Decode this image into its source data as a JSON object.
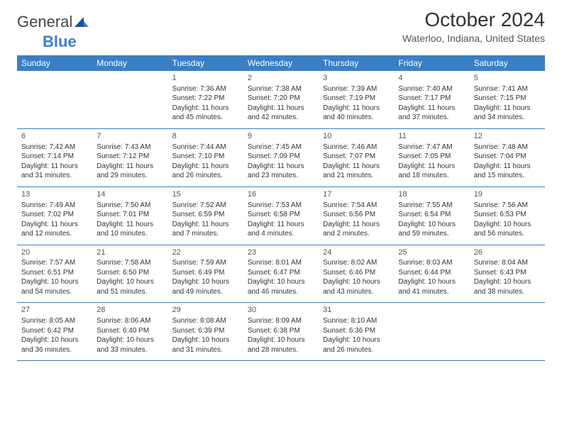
{
  "logo": {
    "text1": "General",
    "text2": "Blue"
  },
  "title": "October 2024",
  "location": "Waterloo, Indiana, United States",
  "colors": {
    "header_bg": "#3a7fc4",
    "header_text": "#ffffff",
    "divider": "#3a7fc4",
    "body_text": "#333333",
    "background": "#ffffff"
  },
  "weekdays": [
    "Sunday",
    "Monday",
    "Tuesday",
    "Wednesday",
    "Thursday",
    "Friday",
    "Saturday"
  ],
  "weeks": [
    [
      {
        "n": "",
        "text": ""
      },
      {
        "n": "",
        "text": ""
      },
      {
        "n": "1",
        "text": "Sunrise: 7:36 AM\nSunset: 7:22 PM\nDaylight: 11 hours and 45 minutes."
      },
      {
        "n": "2",
        "text": "Sunrise: 7:38 AM\nSunset: 7:20 PM\nDaylight: 11 hours and 42 minutes."
      },
      {
        "n": "3",
        "text": "Sunrise: 7:39 AM\nSunset: 7:19 PM\nDaylight: 11 hours and 40 minutes."
      },
      {
        "n": "4",
        "text": "Sunrise: 7:40 AM\nSunset: 7:17 PM\nDaylight: 11 hours and 37 minutes."
      },
      {
        "n": "5",
        "text": "Sunrise: 7:41 AM\nSunset: 7:15 PM\nDaylight: 11 hours and 34 minutes."
      }
    ],
    [
      {
        "n": "6",
        "text": "Sunrise: 7:42 AM\nSunset: 7:14 PM\nDaylight: 11 hours and 31 minutes."
      },
      {
        "n": "7",
        "text": "Sunrise: 7:43 AM\nSunset: 7:12 PM\nDaylight: 11 hours and 29 minutes."
      },
      {
        "n": "8",
        "text": "Sunrise: 7:44 AM\nSunset: 7:10 PM\nDaylight: 11 hours and 26 minutes."
      },
      {
        "n": "9",
        "text": "Sunrise: 7:45 AM\nSunset: 7:09 PM\nDaylight: 11 hours and 23 minutes."
      },
      {
        "n": "10",
        "text": "Sunrise: 7:46 AM\nSunset: 7:07 PM\nDaylight: 11 hours and 21 minutes."
      },
      {
        "n": "11",
        "text": "Sunrise: 7:47 AM\nSunset: 7:05 PM\nDaylight: 11 hours and 18 minutes."
      },
      {
        "n": "12",
        "text": "Sunrise: 7:48 AM\nSunset: 7:04 PM\nDaylight: 11 hours and 15 minutes."
      }
    ],
    [
      {
        "n": "13",
        "text": "Sunrise: 7:49 AM\nSunset: 7:02 PM\nDaylight: 11 hours and 12 minutes."
      },
      {
        "n": "14",
        "text": "Sunrise: 7:50 AM\nSunset: 7:01 PM\nDaylight: 11 hours and 10 minutes."
      },
      {
        "n": "15",
        "text": "Sunrise: 7:52 AM\nSunset: 6:59 PM\nDaylight: 11 hours and 7 minutes."
      },
      {
        "n": "16",
        "text": "Sunrise: 7:53 AM\nSunset: 6:58 PM\nDaylight: 11 hours and 4 minutes."
      },
      {
        "n": "17",
        "text": "Sunrise: 7:54 AM\nSunset: 6:56 PM\nDaylight: 11 hours and 2 minutes."
      },
      {
        "n": "18",
        "text": "Sunrise: 7:55 AM\nSunset: 6:54 PM\nDaylight: 10 hours and 59 minutes."
      },
      {
        "n": "19",
        "text": "Sunrise: 7:56 AM\nSunset: 6:53 PM\nDaylight: 10 hours and 56 minutes."
      }
    ],
    [
      {
        "n": "20",
        "text": "Sunrise: 7:57 AM\nSunset: 6:51 PM\nDaylight: 10 hours and 54 minutes."
      },
      {
        "n": "21",
        "text": "Sunrise: 7:58 AM\nSunset: 6:50 PM\nDaylight: 10 hours and 51 minutes."
      },
      {
        "n": "22",
        "text": "Sunrise: 7:59 AM\nSunset: 6:49 PM\nDaylight: 10 hours and 49 minutes."
      },
      {
        "n": "23",
        "text": "Sunrise: 8:01 AM\nSunset: 6:47 PM\nDaylight: 10 hours and 46 minutes."
      },
      {
        "n": "24",
        "text": "Sunrise: 8:02 AM\nSunset: 6:46 PM\nDaylight: 10 hours and 43 minutes."
      },
      {
        "n": "25",
        "text": "Sunrise: 8:03 AM\nSunset: 6:44 PM\nDaylight: 10 hours and 41 minutes."
      },
      {
        "n": "26",
        "text": "Sunrise: 8:04 AM\nSunset: 6:43 PM\nDaylight: 10 hours and 38 minutes."
      }
    ],
    [
      {
        "n": "27",
        "text": "Sunrise: 8:05 AM\nSunset: 6:42 PM\nDaylight: 10 hours and 36 minutes."
      },
      {
        "n": "28",
        "text": "Sunrise: 8:06 AM\nSunset: 6:40 PM\nDaylight: 10 hours and 33 minutes."
      },
      {
        "n": "29",
        "text": "Sunrise: 8:08 AM\nSunset: 6:39 PM\nDaylight: 10 hours and 31 minutes."
      },
      {
        "n": "30",
        "text": "Sunrise: 8:09 AM\nSunset: 6:38 PM\nDaylight: 10 hours and 28 minutes."
      },
      {
        "n": "31",
        "text": "Sunrise: 8:10 AM\nSunset: 6:36 PM\nDaylight: 10 hours and 26 minutes."
      },
      {
        "n": "",
        "text": ""
      },
      {
        "n": "",
        "text": ""
      }
    ]
  ]
}
